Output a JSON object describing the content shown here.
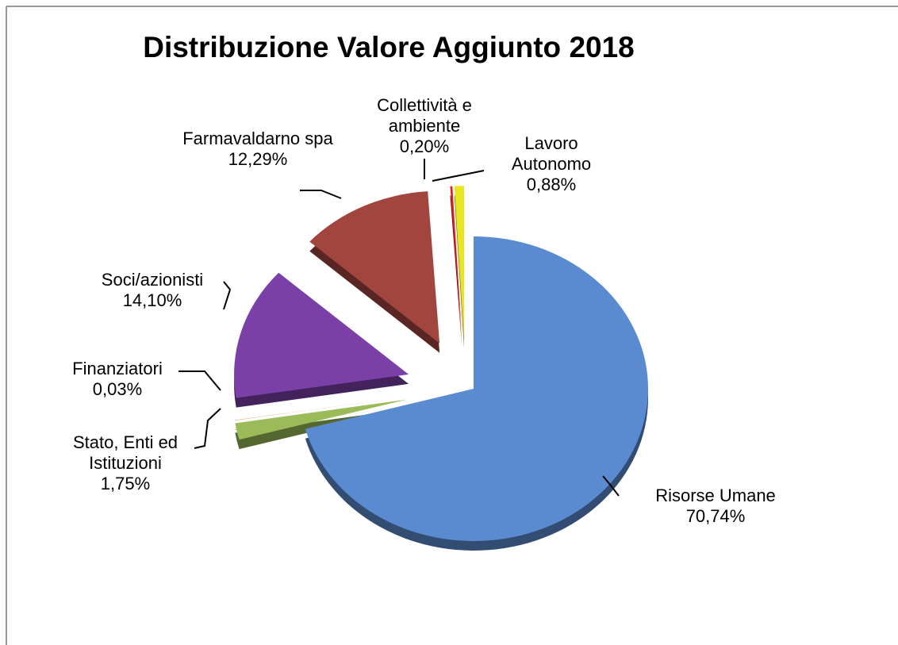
{
  "chart_data": {
    "type": "pie",
    "title": "Distribuzione Valore Aggiunto 2018",
    "categories": [
      "Risorse Umane",
      "Stato, Enti ed Istituzioni",
      "Finanziatori",
      "Soci/azionisti",
      "Farmavaldarno spa",
      "Collettività e ambiente",
      "Lavoro Autonomo"
    ],
    "values": [
      70.74,
      1.75,
      0.03,
      14.1,
      12.29,
      0.2,
      0.88
    ],
    "value_labels": [
      "70,74%",
      "1,75%",
      "0,03%",
      "14,10%",
      "12,29%",
      "0,20%",
      "0,88%"
    ],
    "colors": [
      "#5a8bd0",
      "#9bbb59",
      "#e07b39",
      "#7b3fa8",
      "#a2453f",
      "#e02020",
      "#e8e620"
    ]
  }
}
